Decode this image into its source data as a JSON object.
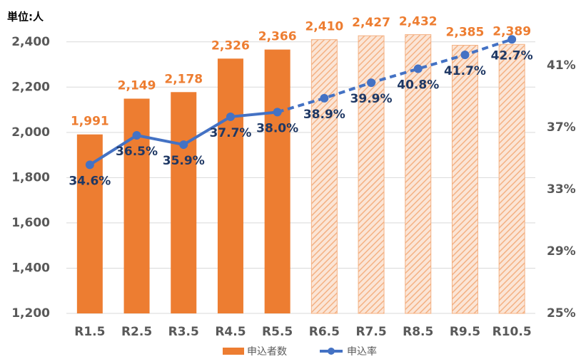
{
  "chart_data": {
    "type": "bar_line",
    "title": "単位:人",
    "categories": [
      "R1.5",
      "R2.5",
      "R3.5",
      "R4.5",
      "R5.5",
      "R6.5",
      "R7.5",
      "R8.5",
      "R9.5",
      "R10.5"
    ],
    "series": [
      {
        "name": "申込者数",
        "type": "bar",
        "color": "#ed7d31",
        "values": [
          1991,
          2149,
          2178,
          2326,
          2366,
          2410,
          2427,
          2432,
          2385,
          2389
        ],
        "value_labels": [
          "1,991",
          "2,149",
          "2,178",
          "2,326",
          "2,366",
          "2,410",
          "2,427",
          "2,432",
          "2,385",
          "2,389"
        ],
        "styles": [
          "actual",
          "actual",
          "actual",
          "actual",
          "actual",
          "projected",
          "projected",
          "projected",
          "projected",
          "projected"
        ]
      },
      {
        "name": "申込率",
        "type": "line",
        "axis": "y2",
        "color": "#4472c4",
        "values": [
          34.6,
          36.5,
          35.9,
          37.7,
          38.0,
          38.9,
          39.9,
          40.8,
          41.7,
          42.7
        ],
        "value_labels": [
          "34.6%",
          "36.5%",
          "35.9%",
          "37.7%",
          "38.0%",
          "38.9%",
          "39.9%",
          "40.8%",
          "41.7%",
          "42.7%"
        ],
        "styles": [
          "actual",
          "actual",
          "actual",
          "actual",
          "actual",
          "projected",
          "projected",
          "projected",
          "projected",
          "projected"
        ]
      }
    ],
    "ylim": [
      1200,
      2500
    ],
    "yticks": [
      {
        "value": 1200,
        "label": "1,200"
      },
      {
        "value": 1400,
        "label": "1,400"
      },
      {
        "value": 1600,
        "label": "1,600"
      },
      {
        "value": 1800,
        "label": "1,800"
      },
      {
        "value": 2000,
        "label": "2,000"
      },
      {
        "value": 2200,
        "label": "2,200"
      },
      {
        "value": 2400,
        "label": "2,400"
      }
    ],
    "y2lim": [
      25,
      44
    ],
    "y2ticks": [
      {
        "value": 25,
        "label": "25%"
      },
      {
        "value": 29,
        "label": "29%"
      },
      {
        "value": 33,
        "label": "33%"
      },
      {
        "value": 37,
        "label": "37%"
      },
      {
        "value": 41,
        "label": "41%"
      }
    ],
    "grid": true,
    "legend": "bottom"
  }
}
